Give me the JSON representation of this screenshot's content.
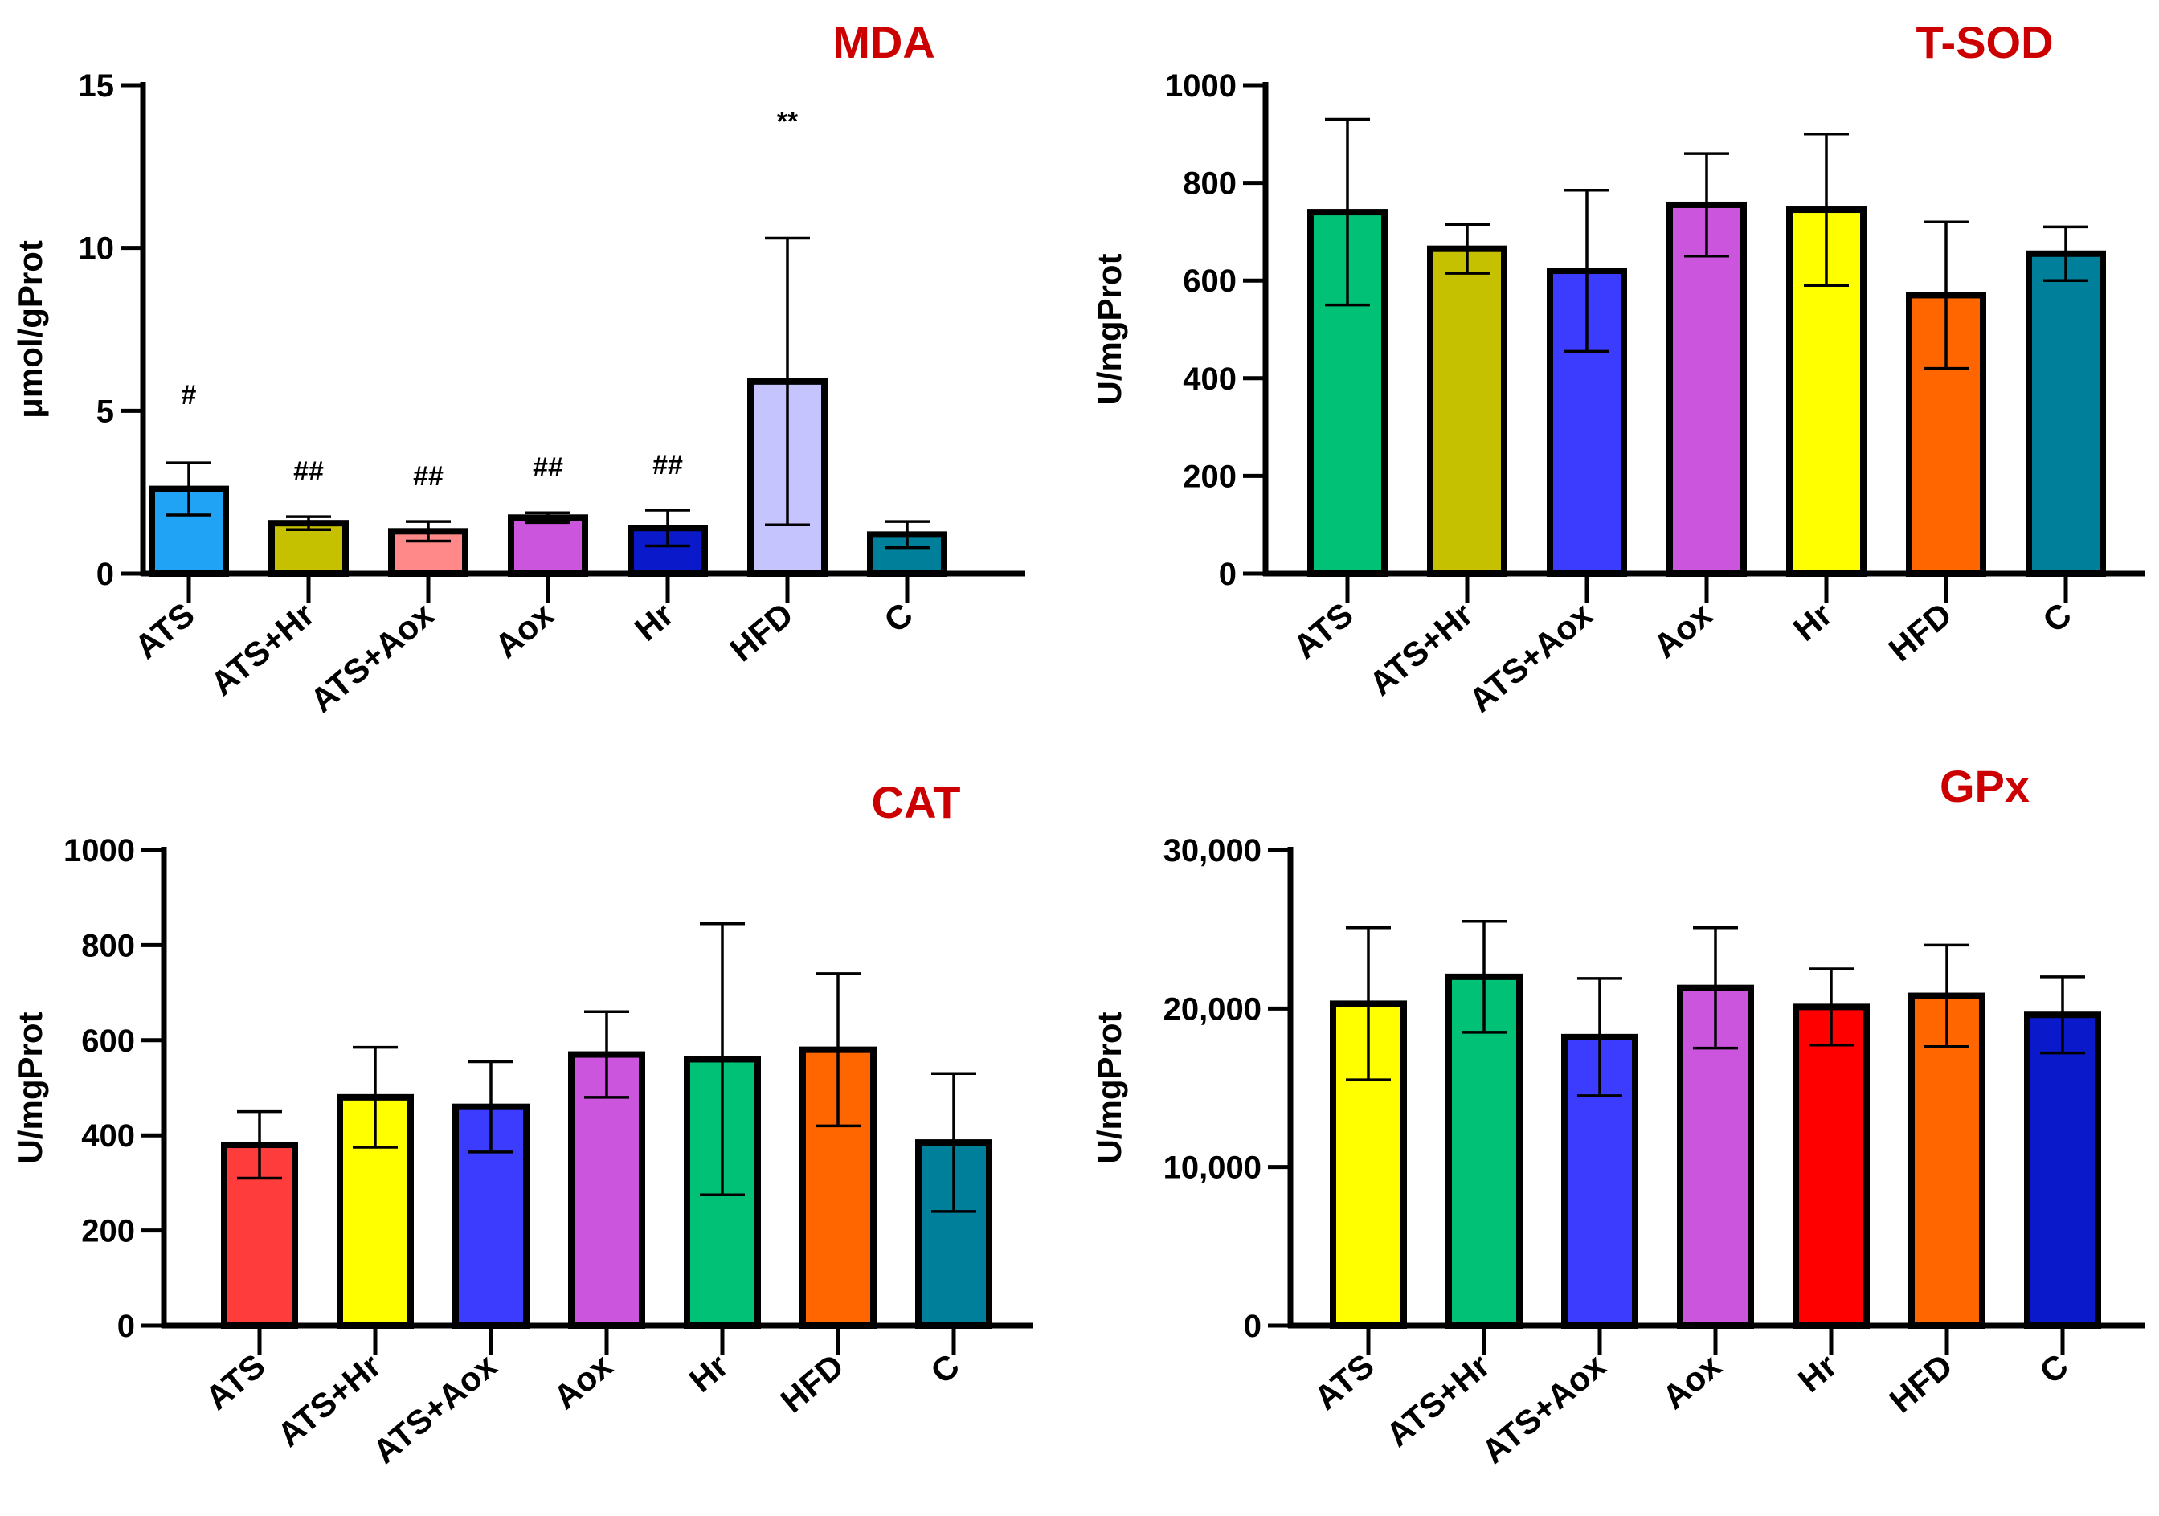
{
  "chart_data": [
    {
      "type": "bar",
      "title": "MDA",
      "ylabel": "μmol/gProt",
      "xlabel": "",
      "ylim": [
        0,
        15
      ],
      "yticks": [
        0,
        5,
        10,
        15
      ],
      "ytick_labels": [
        "0",
        "5",
        "10",
        "15"
      ],
      "categories": [
        "ATS",
        "ATS+Hr",
        "ATS+Aox",
        "Aox",
        "Hr",
        "HFD",
        "C"
      ],
      "values": [
        2.6,
        1.55,
        1.3,
        1.72,
        1.4,
        5.9,
        1.2
      ],
      "errors": [
        0.8,
        0.2,
        0.3,
        0.15,
        0.55,
        4.4,
        0.4
      ],
      "colors": [
        "#21a3f5",
        "#c5c000",
        "#ff8888",
        "#cc55dd",
        "#0a1acb",
        "#c5c4ff",
        "#007f9a"
      ],
      "annotations": [
        "#",
        "##",
        "##",
        "##",
        "##",
        "**",
        ""
      ]
    },
    {
      "type": "bar",
      "title": "T-SOD",
      "ylabel": "U/mgProt",
      "xlabel": "",
      "ylim": [
        0,
        1000
      ],
      "yticks": [
        0,
        200,
        400,
        600,
        800,
        1000
      ],
      "ytick_labels": [
        "0",
        "200",
        "400",
        "600",
        "800",
        "1000"
      ],
      "categories": [
        "ATS",
        "ATS+Hr",
        "ATS+Aox",
        "Aox",
        "Hr",
        "HFD",
        "C"
      ],
      "values": [
        740,
        665,
        620,
        755,
        745,
        570,
        655
      ],
      "errors": [
        190,
        50,
        165,
        105,
        155,
        150,
        55
      ],
      "colors": [
        "#00c176",
        "#c5c000",
        "#3c3cff",
        "#cc55dd",
        "#ffff00",
        "#ff6600",
        "#007f9a"
      ],
      "annotations": [
        "",
        "",
        "",
        "",
        "",
        "",
        ""
      ]
    },
    {
      "type": "bar",
      "title": "CAT",
      "ylabel": "U/mgProt",
      "xlabel": "",
      "ylim": [
        0,
        1000
      ],
      "yticks": [
        0,
        200,
        400,
        600,
        800,
        1000
      ],
      "ytick_labels": [
        "0",
        "200",
        "400",
        "600",
        "800",
        "1000"
      ],
      "categories": [
        "ATS",
        "ATS+Hr",
        "ATS+Aox",
        "Aox",
        "Hr",
        "HFD",
        "C"
      ],
      "values": [
        380,
        480,
        460,
        570,
        560,
        580,
        385
      ],
      "errors": [
        70,
        105,
        95,
        90,
        285,
        160,
        145
      ],
      "colors": [
        "#ff3c3c",
        "#ffff00",
        "#3c3cff",
        "#cc55dd",
        "#00c176",
        "#ff6600",
        "#007f9a"
      ],
      "annotations": [
        "",
        "",
        "",
        "",
        "",
        "",
        ""
      ]
    },
    {
      "type": "bar",
      "title": "GPx",
      "ylabel": "U/mgProt",
      "xlabel": "",
      "ylim": [
        0,
        30000
      ],
      "yticks": [
        0,
        10000,
        20000,
        30000
      ],
      "ytick_labels": [
        "0",
        "10,000",
        "20,000",
        "30,000"
      ],
      "categories": [
        "ATS",
        "ATS+Hr",
        "ATS+Aox",
        "Aox",
        "Hr",
        "HFD",
        "C"
      ],
      "values": [
        20300,
        22000,
        18200,
        21300,
        20100,
        20800,
        19600
      ],
      "errors": [
        4800,
        3500,
        3700,
        3800,
        2400,
        3200,
        2400
      ],
      "colors": [
        "#ffff00",
        "#00c176",
        "#3c3cff",
        "#cc55dd",
        "#ff0000",
        "#ff6600",
        "#0a1acb"
      ],
      "annotations": [
        "",
        "",
        "",
        "",
        "",
        "",
        ""
      ]
    }
  ]
}
